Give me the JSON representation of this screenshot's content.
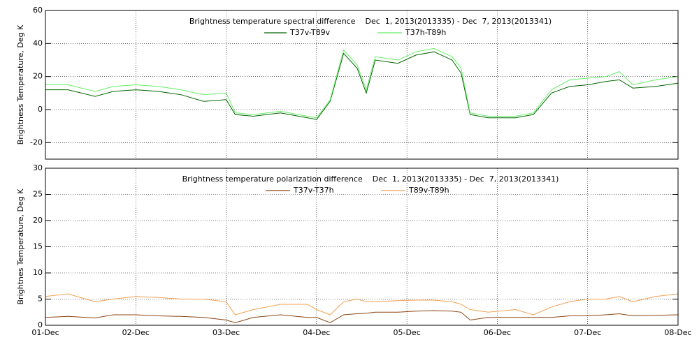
{
  "chart_data": [
    {
      "type": "line",
      "title": "Brightness temperature spectral difference    Dec  1, 2013(2013335) - Dec  7, 2013(2013341)",
      "ylabel": "Brightness Temperature, Deg K",
      "x": [
        0,
        0.25,
        0.55,
        0.75,
        1.0,
        1.25,
        1.5,
        1.75,
        2.0,
        2.1,
        2.3,
        2.6,
        2.9,
        3.0,
        3.15,
        3.3,
        3.45,
        3.55,
        3.65,
        3.9,
        4.1,
        4.3,
        4.5,
        4.6,
        4.7,
        4.9,
        5.2,
        5.4,
        5.6,
        5.8,
        6.0,
        6.2,
        6.35,
        6.5,
        6.75,
        7.0
      ],
      "series": [
        {
          "name": "T37v-T89v",
          "color": "#006400",
          "values": [
            12,
            12,
            8,
            11,
            12,
            11,
            9,
            5,
            6,
            -3,
            -4,
            -2,
            -5,
            -6,
            5,
            34,
            25,
            10,
            30,
            28,
            33,
            35,
            30,
            22,
            -3,
            -5,
            -5,
            -3,
            10,
            14,
            15,
            17,
            18,
            13,
            14,
            16
          ]
        },
        {
          "name": "T37h-T89h",
          "color": "#66ee66",
          "values": [
            15,
            15,
            11,
            14,
            15,
            14,
            12,
            9,
            10,
            -2,
            -3,
            -1,
            -4,
            -5,
            6,
            36,
            27,
            12,
            32,
            30,
            35,
            37,
            32,
            25,
            -2,
            -4,
            -4,
            -2,
            12,
            18,
            19,
            20,
            23,
            15,
            18,
            20
          ]
        }
      ],
      "xlim": [
        0,
        7
      ],
      "ylim": [
        -30,
        60
      ],
      "yticks": [
        -20,
        0,
        20,
        40,
        60
      ],
      "grid": true
    },
    {
      "type": "line",
      "title": "Brightness temperature polarization difference    Dec  1, 2013(2013335) - Dec  7, 2013(2013341)",
      "ylabel": "Brightnes Temperature, Deg K",
      "x": [
        0,
        0.25,
        0.55,
        0.75,
        1.0,
        1.25,
        1.5,
        1.75,
        2.0,
        2.1,
        2.3,
        2.6,
        2.9,
        3.0,
        3.15,
        3.3,
        3.45,
        3.55,
        3.65,
        3.9,
        4.1,
        4.3,
        4.5,
        4.6,
        4.7,
        4.9,
        5.2,
        5.4,
        5.6,
        5.8,
        6.0,
        6.2,
        6.35,
        6.5,
        6.75,
        7.0
      ],
      "series": [
        {
          "name": "T37v-T37h",
          "color": "#8b4513",
          "values": [
            1.5,
            1.7,
            1.4,
            2,
            2,
            1.8,
            1.7,
            1.5,
            1,
            0.5,
            1.5,
            2,
            1.5,
            1.5,
            0.5,
            2,
            2.2,
            2.3,
            2.5,
            2.5,
            2.7,
            2.8,
            2.7,
            2.5,
            1,
            1.5,
            1.5,
            1.5,
            1.5,
            1.8,
            1.8,
            2,
            2.2,
            1.8,
            1.9,
            2.0
          ]
        },
        {
          "name": "T89v-T89h",
          "color": "#f0a050",
          "values": [
            5.5,
            6,
            4.5,
            5,
            5.5,
            5.3,
            5,
            5,
            4.5,
            2,
            3,
            4,
            4,
            3,
            2,
            4.5,
            5,
            4.5,
            4.5,
            4.7,
            4.8,
            4.8,
            4.5,
            4,
            3,
            2.5,
            3,
            2,
            3.5,
            4.5,
            5,
            5,
            5.5,
            4.5,
            5.5,
            6
          ]
        }
      ],
      "xlim": [
        0,
        7
      ],
      "xticks": [
        {
          "value": 0,
          "label": "01-Dec"
        },
        {
          "value": 1,
          "label": "02-Dec"
        },
        {
          "value": 2,
          "label": "03-Dec"
        },
        {
          "value": 3,
          "label": "04-Dec"
        },
        {
          "value": 4,
          "label": "05-Dec"
        },
        {
          "value": 5,
          "label": "06-Dec"
        },
        {
          "value": 6,
          "label": "07-Dec"
        },
        {
          "value": 7,
          "label": "08-Dec"
        }
      ],
      "ylim": [
        0,
        30
      ],
      "yticks": [
        0,
        5,
        10,
        15,
        20,
        25,
        30
      ],
      "grid": true
    }
  ]
}
